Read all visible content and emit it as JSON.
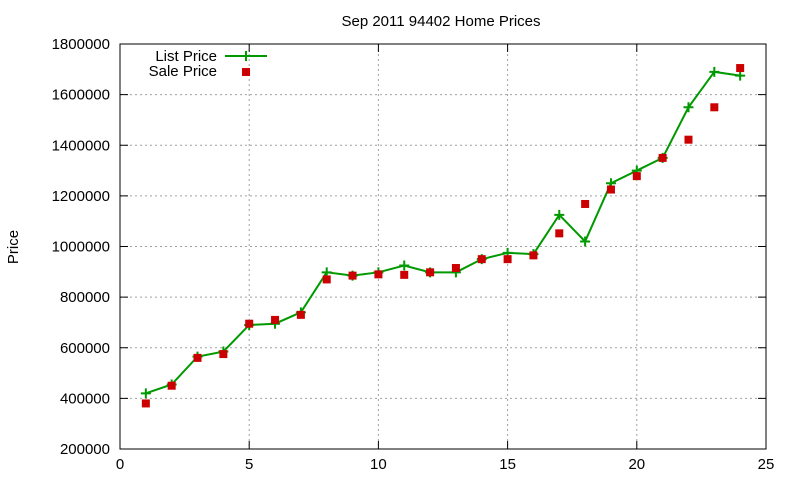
{
  "chart_data": {
    "type": "line",
    "title": "Sep 2011 94402 Home Prices",
    "xlabel": "",
    "ylabel": "Price",
    "xlim": [
      0,
      25
    ],
    "ylim": [
      200000,
      1800000
    ],
    "x_ticks": [
      "0",
      "5",
      "10",
      "15",
      "20",
      "25"
    ],
    "y_ticks": [
      "200000",
      "400000",
      "600000",
      "800000",
      "1000000",
      "1200000",
      "1400000",
      "1600000",
      "1800000"
    ],
    "grid": true,
    "legend_position": "top-left",
    "x": [
      1,
      2,
      3,
      4,
      5,
      6,
      7,
      8,
      9,
      10,
      11,
      12,
      13,
      14,
      15,
      16,
      17,
      18,
      19,
      20,
      21,
      22,
      23,
      24
    ],
    "series": [
      {
        "name": "List Price",
        "style": "line-with-plus-markers",
        "color": "#009900",
        "values": [
          420000,
          455000,
          565000,
          585000,
          690000,
          695000,
          740000,
          898000,
          885000,
          898000,
          925000,
          898000,
          898000,
          950000,
          975000,
          970000,
          1125000,
          1020000,
          1250000,
          1300000,
          1350000,
          1550000,
          1690000,
          1675000
        ]
      },
      {
        "name": "Sale Price",
        "style": "square-markers",
        "color": "#cc0000",
        "values": [
          380000,
          450000,
          560000,
          575000,
          695000,
          710000,
          730000,
          870000,
          885000,
          890000,
          888000,
          898000,
          915000,
          950000,
          950000,
          965000,
          1052000,
          1168000,
          1225000,
          1278000,
          1350000,
          1422000,
          1550000,
          1705000
        ]
      }
    ]
  }
}
